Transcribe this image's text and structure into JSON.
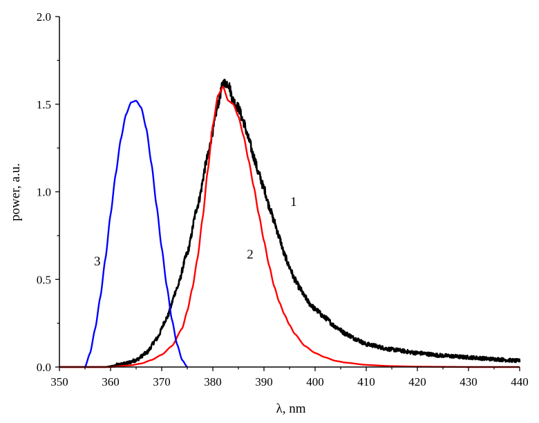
{
  "chart_data": {
    "type": "line",
    "title": "",
    "xlabel": "λ, nm",
    "ylabel": "power, a.u.",
    "xlim": [
      350,
      440
    ],
    "ylim": [
      0.0,
      2.0
    ],
    "xticks": [
      "350",
      "360",
      "370",
      "380",
      "390",
      "400",
      "410",
      "420",
      "430",
      "440"
    ],
    "yticks": [
      "0.0",
      "0.5",
      "1.0",
      "1.5",
      "2.0"
    ],
    "grid": false,
    "legend": "none",
    "series": [
      {
        "label": "1",
        "color": "#000000",
        "noisy": true,
        "x": [
          350,
          356,
          359,
          361,
          363,
          365,
          367,
          369,
          371,
          373,
          375,
          377,
          379,
          380,
          381,
          382,
          383,
          384,
          385,
          386,
          387,
          388,
          389,
          390,
          391,
          392,
          393,
          394,
          395,
          396,
          397,
          398,
          399,
          400,
          402,
          404,
          406,
          408,
          410,
          415,
          420,
          425,
          430,
          435,
          440
        ],
        "y": [
          0.0,
          0.0,
          0.0,
          0.01,
          0.02,
          0.04,
          0.08,
          0.16,
          0.28,
          0.45,
          0.65,
          0.92,
          1.2,
          1.35,
          1.5,
          1.62,
          1.62,
          1.52,
          1.48,
          1.4,
          1.3,
          1.2,
          1.1,
          1.02,
          0.92,
          0.83,
          0.74,
          0.64,
          0.57,
          0.5,
          0.45,
          0.4,
          0.36,
          0.33,
          0.28,
          0.23,
          0.19,
          0.16,
          0.13,
          0.1,
          0.08,
          0.065,
          0.055,
          0.045,
          0.035
        ]
      },
      {
        "label": "2",
        "color": "#ff0000",
        "noisy": false,
        "x": [
          350,
          360,
          364,
          366,
          368,
          370,
          372,
          374,
          375,
          376,
          377,
          378,
          379,
          380,
          381,
          382,
          383,
          384,
          385,
          386,
          387,
          388,
          389,
          390,
          391,
          392,
          393,
          394,
          395,
          396,
          398,
          400,
          402,
          404,
          406,
          410,
          415,
          420,
          425,
          430,
          440
        ],
        "y": [
          0.0,
          0.0,
          0.01,
          0.02,
          0.04,
          0.07,
          0.12,
          0.22,
          0.32,
          0.45,
          0.62,
          0.85,
          1.12,
          1.38,
          1.55,
          1.6,
          1.52,
          1.5,
          1.43,
          1.32,
          1.18,
          1.03,
          0.87,
          0.72,
          0.58,
          0.46,
          0.37,
          0.3,
          0.24,
          0.19,
          0.12,
          0.08,
          0.055,
          0.035,
          0.025,
          0.012,
          0.005,
          0.002,
          0.001,
          0.0,
          0.0
        ]
      },
      {
        "label": "3",
        "color": "#0000ff",
        "noisy": false,
        "x": [
          355,
          356,
          357,
          358,
          359,
          360,
          361,
          362,
          363,
          364,
          365,
          366,
          367,
          368,
          369,
          370,
          371,
          372,
          373,
          374,
          375
        ],
        "y": [
          0.0,
          0.08,
          0.22,
          0.4,
          0.62,
          0.87,
          1.1,
          1.3,
          1.44,
          1.51,
          1.52,
          1.48,
          1.36,
          1.16,
          0.92,
          0.68,
          0.46,
          0.27,
          0.13,
          0.04,
          0.0
        ]
      }
    ],
    "annotations": [
      {
        "text": "1",
        "x": 395.8,
        "y": 0.92
      },
      {
        "text": "2",
        "x": 387.3,
        "y": 0.62
      },
      {
        "text": "3",
        "x": 357.4,
        "y": 0.58
      }
    ]
  }
}
